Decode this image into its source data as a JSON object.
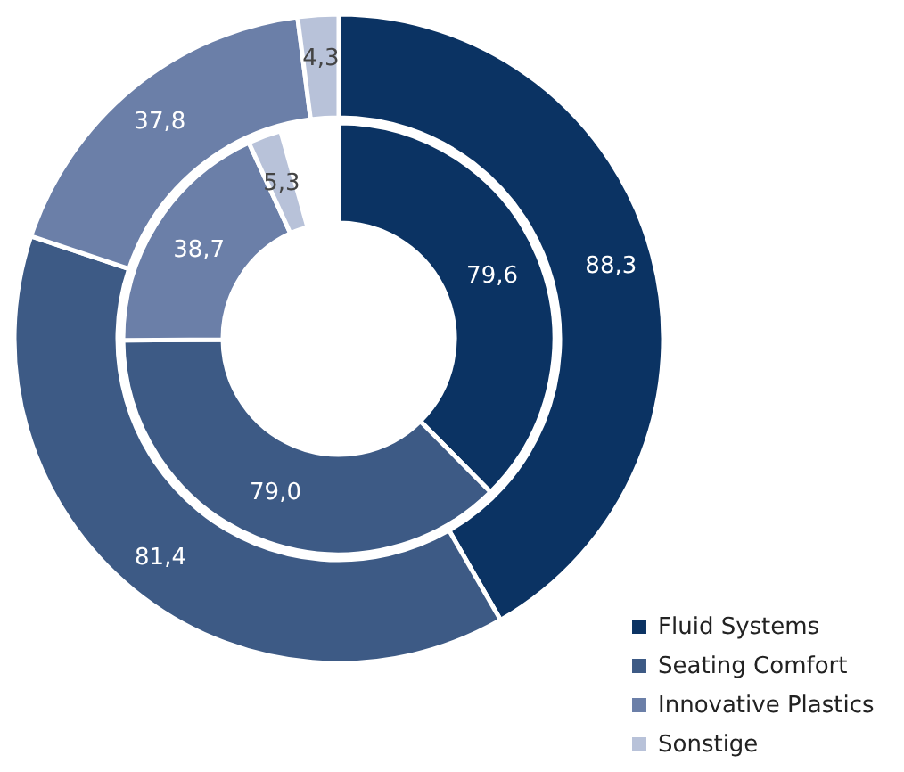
{
  "chart_data": {
    "type": "donut",
    "categories": [
      "Fluid Systems",
      "Seating Comfort",
      "Innovative Plastics",
      "Sonstige"
    ],
    "colors": [
      "#0b3363",
      "#3d5a85",
      "#6b7fa8",
      "#b8c2d9"
    ],
    "series": [
      {
        "values": [
          79.6,
          79.0,
          38.7,
          5.3
        ],
        "value_labels": [
          "79,6",
          "79,0",
          "38,7",
          "5,3"
        ]
      },
      {
        "values": [
          88.3,
          81.4,
          37.8,
          4.3
        ],
        "value_labels": [
          "88,3",
          "81,4",
          "37,8",
          "4,3"
        ]
      }
    ],
    "legend": "bottom right"
  }
}
